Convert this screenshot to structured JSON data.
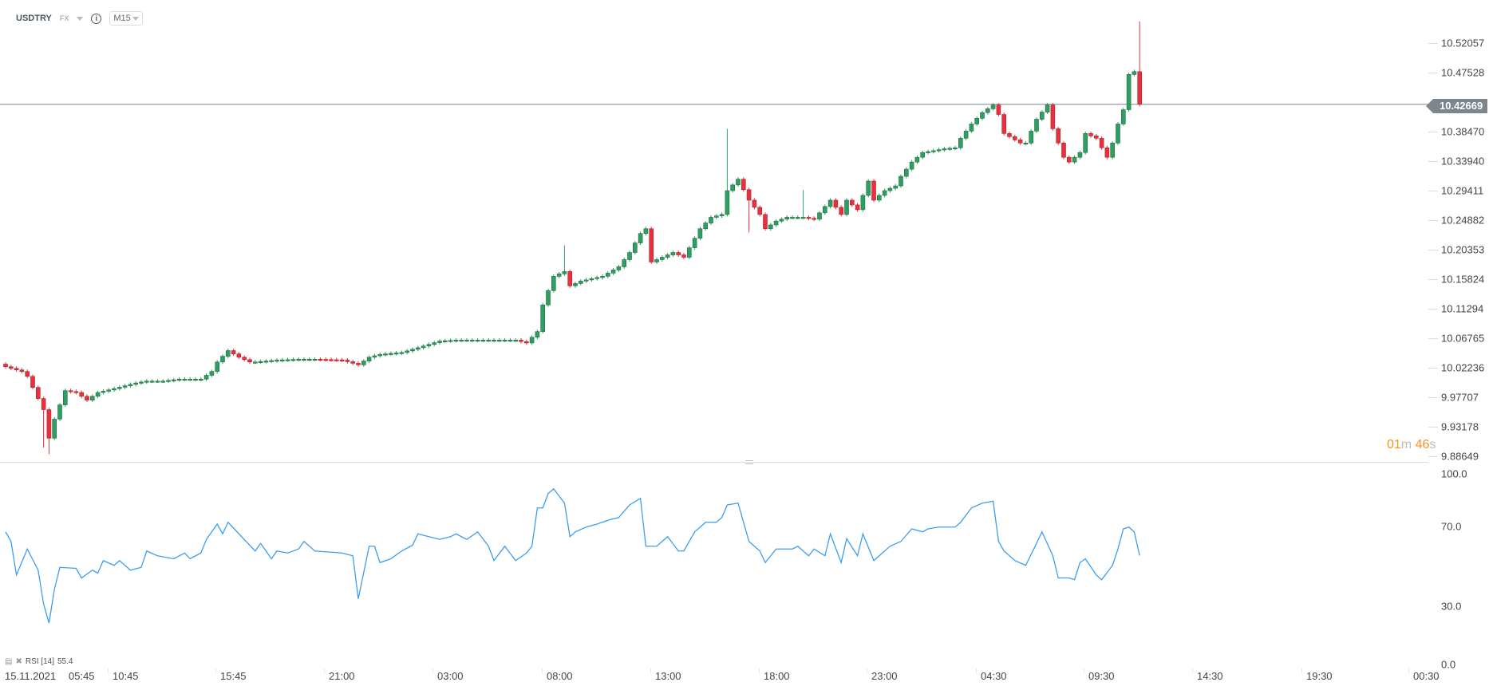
{
  "header": {
    "symbol": "USDTRY",
    "market": "FX",
    "timeframe": "M15"
  },
  "colors": {
    "up": "#2f9e63",
    "down": "#e5323e",
    "line": "#7d868c",
    "rsi": "#3d9df0",
    "timer": "#f7931a"
  },
  "price_axis": {
    "labels": [
      "10.52057",
      "10.47528",
      "10.42669",
      "10.38470",
      "10.33940",
      "10.29411",
      "10.24882",
      "10.20353",
      "10.15824",
      "10.11294",
      "10.06765",
      "10.02236",
      "9.97707",
      "9.93178",
      "9.88649"
    ],
    "ticks": [
      10.52057,
      10.47528,
      10.3847,
      10.3394,
      10.29411,
      10.24882,
      10.20353,
      10.15824,
      10.11294,
      10.06765,
      10.02236,
      9.97707,
      9.93178,
      9.88649
    ],
    "current_price": "10.42669",
    "current_value": 10.42669
  },
  "timer": {
    "min": "01",
    "min_unit": "m",
    "sec": "46",
    "sec_unit": "s"
  },
  "rsi": {
    "label": "RSI [14]",
    "value": "55.4",
    "axis_labels": [
      "100.0",
      "70.0",
      "30.0",
      "0.0"
    ]
  },
  "time_axis": {
    "date": "15.11.2021",
    "labels": [
      "05:45",
      "10:45",
      "15:45",
      "21:00",
      "03:00",
      "08:00",
      "13:00",
      "18:00",
      "23:00",
      "04:30",
      "09:30",
      "14:30",
      "19:30",
      "00:30"
    ]
  },
  "chart_data": {
    "type": "candlestick",
    "symbol": "USDTRY",
    "interval": "M15",
    "ylim": [
      9.88649,
      10.52057
    ],
    "close_anchors": [
      [
        0,
        10.0239
      ],
      [
        3,
        10.0166
      ],
      [
        4,
        10.0092
      ],
      [
        7,
        9.9581
      ],
      [
        8,
        9.9143
      ],
      [
        9,
        9.9435
      ],
      [
        11,
        9.9873
      ],
      [
        13,
        9.9844
      ],
      [
        15,
        9.9727
      ],
      [
        17,
        9.9844
      ],
      [
        20,
        9.9903
      ],
      [
        24,
        9.999
      ],
      [
        26,
        10.0019
      ],
      [
        29,
        10.0019
      ],
      [
        32,
        10.0049
      ],
      [
        36,
        10.0049
      ],
      [
        38,
        10.0166
      ],
      [
        39,
        10.0312
      ],
      [
        41,
        10.0487
      ],
      [
        43,
        10.0385
      ],
      [
        45,
        10.0312
      ],
      [
        46,
        10.0312
      ],
      [
        50,
        10.0341
      ],
      [
        54,
        10.0355
      ],
      [
        57,
        10.0355
      ],
      [
        62,
        10.0341
      ],
      [
        65,
        10.0268
      ],
      [
        67,
        10.0385
      ],
      [
        69,
        10.0429
      ],
      [
        73,
        10.0458
      ],
      [
        76,
        10.0531
      ],
      [
        80,
        10.0633
      ],
      [
        83,
        10.0648
      ],
      [
        87,
        10.0648
      ],
      [
        90,
        10.0648
      ],
      [
        94,
        10.0648
      ],
      [
        96,
        10.0604
      ],
      [
        98,
        10.0779
      ],
      [
        99,
        10.1188
      ],
      [
        101,
        10.1627
      ],
      [
        103,
        10.17
      ],
      [
        104,
        10.148
      ],
      [
        106,
        10.1553
      ],
      [
        110,
        10.1627
      ],
      [
        113,
        10.1773
      ],
      [
        115,
        10.1992
      ],
      [
        117,
        10.2284
      ],
      [
        118,
        10.2357
      ],
      [
        119,
        10.1846
      ],
      [
        121,
        10.1919
      ],
      [
        123,
        10.1992
      ],
      [
        125,
        10.1919
      ],
      [
        126,
        10.2065
      ],
      [
        128,
        10.2357
      ],
      [
        130,
        10.2532
      ],
      [
        132,
        10.2576
      ],
      [
        133,
        10.2941
      ],
      [
        135,
        10.3117
      ],
      [
        137,
        10.2795
      ],
      [
        139,
        10.2576
      ],
      [
        140,
        10.2357
      ],
      [
        142,
        10.2474
      ],
      [
        144,
        10.2532
      ],
      [
        147,
        10.2532
      ],
      [
        149,
        10.2503
      ],
      [
        152,
        10.2795
      ],
      [
        154,
        10.2576
      ],
      [
        155,
        10.2795
      ],
      [
        157,
        10.2649
      ],
      [
        159,
        10.3088
      ],
      [
        160,
        10.2795
      ],
      [
        162,
        10.2941
      ],
      [
        164,
        10.3014
      ],
      [
        165,
        10.3161
      ],
      [
        167,
        10.338
      ],
      [
        169,
        10.3526
      ],
      [
        171,
        10.3555
      ],
      [
        173,
        10.3584
      ],
      [
        175,
        10.3599
      ],
      [
        176,
        10.3745
      ],
      [
        178,
        10.3964
      ],
      [
        180,
        10.4139
      ],
      [
        182,
        10.4256
      ],
      [
        183,
        10.411
      ],
      [
        184,
        10.3818
      ],
      [
        187,
        10.3672
      ],
      [
        188,
        10.3672
      ],
      [
        190,
        10.4037
      ],
      [
        192,
        10.4256
      ],
      [
        193,
        10.3891
      ],
      [
        195,
        10.3453
      ],
      [
        196,
        10.338
      ],
      [
        198,
        10.3526
      ],
      [
        199,
        10.3818
      ],
      [
        201,
        10.3745
      ],
      [
        203,
        10.3453
      ],
      [
        204,
        10.3672
      ],
      [
        205,
        10.3964
      ],
      [
        206,
        10.4183
      ],
      [
        207,
        10.4724
      ],
      [
        208,
        10.4768
      ],
      [
        209,
        10.42669
      ]
    ],
    "wick_extremes": [
      [
        8,
        "low",
        9.89
      ],
      [
        7,
        "low",
        9.9
      ],
      [
        133,
        "high",
        10.389
      ],
      [
        137,
        "low",
        10.23
      ],
      [
        209,
        "high",
        10.554
      ],
      [
        103,
        "high",
        10.21
      ],
      [
        147,
        "high",
        10.295
      ]
    ],
    "rsi": [
      [
        0,
        67.3
      ],
      [
        1,
        62.5
      ],
      [
        2,
        45.7
      ],
      [
        4,
        58.7
      ],
      [
        6,
        48.1
      ],
      [
        7,
        31.2
      ],
      [
        8,
        21.6
      ],
      [
        9,
        38.5
      ],
      [
        10,
        49.5
      ],
      [
        13,
        49.0
      ],
      [
        14,
        44.2
      ],
      [
        16,
        48.1
      ],
      [
        17,
        46.6
      ],
      [
        18,
        52.9
      ],
      [
        20,
        50.5
      ],
      [
        21,
        52.9
      ],
      [
        23,
        48.1
      ],
      [
        25,
        49.5
      ],
      [
        26,
        57.7
      ],
      [
        28,
        55.3
      ],
      [
        31,
        53.8
      ],
      [
        33,
        56.7
      ],
      [
        34,
        53.8
      ],
      [
        36,
        56.7
      ],
      [
        37,
        63.5
      ],
      [
        39,
        71.2
      ],
      [
        40,
        66.3
      ],
      [
        41,
        72.1
      ],
      [
        43,
        66.3
      ],
      [
        46,
        57.7
      ],
      [
        47,
        61.5
      ],
      [
        49,
        53.8
      ],
      [
        50,
        57.7
      ],
      [
        52,
        56.7
      ],
      [
        54,
        58.7
      ],
      [
        55,
        62.5
      ],
      [
        57,
        57.7
      ],
      [
        62,
        56.7
      ],
      [
        64,
        55.3
      ],
      [
        65,
        33.7
      ],
      [
        67,
        60.1
      ],
      [
        68,
        60.1
      ],
      [
        69,
        51.9
      ],
      [
        71,
        53.8
      ],
      [
        73,
        57.7
      ],
      [
        75,
        60.6
      ],
      [
        76,
        66.3
      ],
      [
        78,
        64.9
      ],
      [
        80,
        63.5
      ],
      [
        82,
        64.9
      ],
      [
        83,
        66.3
      ],
      [
        85,
        63.5
      ],
      [
        87,
        67.3
      ],
      [
        89,
        60.1
      ],
      [
        90,
        52.9
      ],
      [
        92,
        60.1
      ],
      [
        94,
        52.9
      ],
      [
        96,
        56.7
      ],
      [
        97,
        60.1
      ],
      [
        98,
        79.3
      ],
      [
        99,
        79.3
      ],
      [
        100,
        86.5
      ],
      [
        101,
        88.9
      ],
      [
        103,
        81.7
      ],
      [
        104,
        64.9
      ],
      [
        105,
        67.3
      ],
      [
        107,
        69.7
      ],
      [
        109,
        71.2
      ],
      [
        111,
        73.1
      ],
      [
        113,
        74.5
      ],
      [
        115,
        80.8
      ],
      [
        117,
        84.1
      ],
      [
        118,
        60.1
      ],
      [
        120,
        60.1
      ],
      [
        122,
        64.9
      ],
      [
        124,
        57.7
      ],
      [
        125,
        57.7
      ],
      [
        127,
        67.3
      ],
      [
        129,
        72.1
      ],
      [
        131,
        72.1
      ],
      [
        132,
        74.5
      ],
      [
        133,
        80.8
      ],
      [
        135,
        81.7
      ],
      [
        137,
        62.5
      ],
      [
        139,
        57.7
      ],
      [
        140,
        51.9
      ],
      [
        142,
        58.7
      ],
      [
        145,
        58.7
      ],
      [
        146,
        60.1
      ],
      [
        148,
        55.3
      ],
      [
        149,
        58.7
      ],
      [
        151,
        55.3
      ],
      [
        152,
        66.3
      ],
      [
        154,
        51.9
      ],
      [
        155,
        63.9
      ],
      [
        157,
        55.3
      ],
      [
        158,
        66.3
      ],
      [
        160,
        52.9
      ],
      [
        162,
        57.7
      ],
      [
        163,
        60.1
      ],
      [
        165,
        62.5
      ],
      [
        167,
        68.8
      ],
      [
        169,
        67.3
      ],
      [
        170,
        68.8
      ],
      [
        172,
        69.7
      ],
      [
        175,
        69.7
      ],
      [
        176,
        72.1
      ],
      [
        178,
        79.3
      ],
      [
        180,
        81.7
      ],
      [
        182,
        82.7
      ],
      [
        183,
        62.5
      ],
      [
        184,
        57.7
      ],
      [
        186,
        52.9
      ],
      [
        188,
        50.5
      ],
      [
        190,
        61.5
      ],
      [
        191,
        67.3
      ],
      [
        193,
        55.3
      ],
      [
        194,
        44.2
      ],
      [
        196,
        44.2
      ],
      [
        197,
        43.3
      ],
      [
        198,
        51.9
      ],
      [
        199,
        53.8
      ],
      [
        201,
        45.7
      ],
      [
        202,
        43.3
      ],
      [
        204,
        50.5
      ],
      [
        205,
        58.7
      ],
      [
        206,
        68.8
      ],
      [
        207,
        69.7
      ],
      [
        208,
        67.3
      ],
      [
        209,
        55.4
      ]
    ],
    "rsi_ylim": [
      0,
      100
    ]
  }
}
